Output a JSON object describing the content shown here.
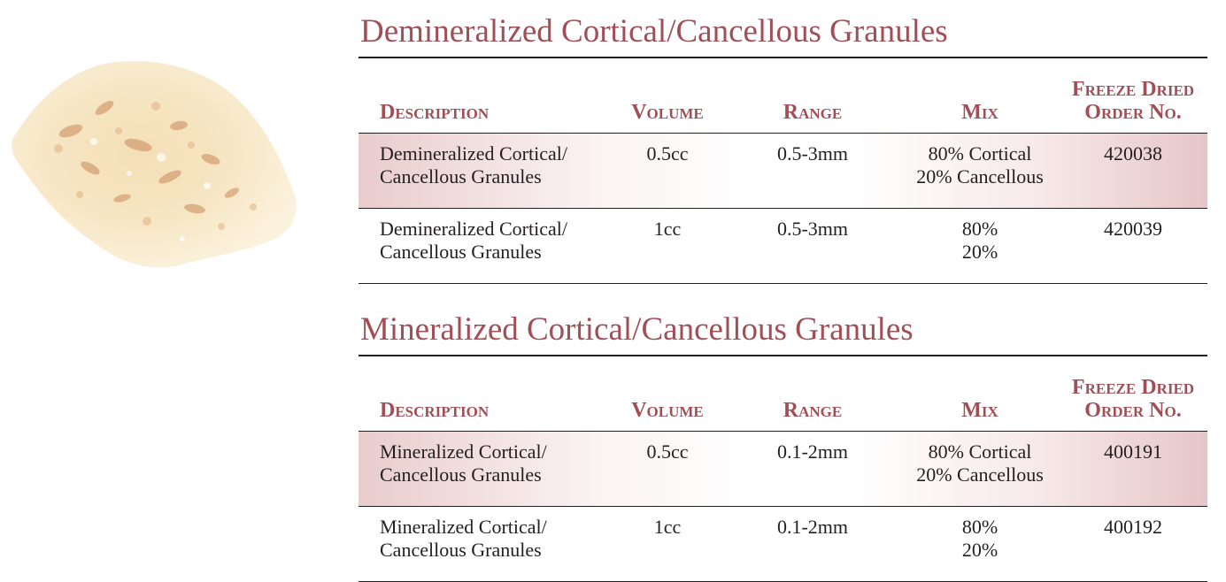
{
  "image": {
    "alt": "granules-photo"
  },
  "tables": [
    {
      "title": "Demineralized Cortical/Cancellous Granules",
      "headers": {
        "description": "Description",
        "volume": "Volume",
        "range": "Range",
        "mix": "Mix",
        "order_line1": "Freeze Dried",
        "order_line2": "Order No."
      },
      "rows": [
        {
          "desc1": "Demineralized Cortical/",
          "desc2": "Cancellous Granules",
          "volume": "0.5cc",
          "range": "0.5-3mm",
          "mix1": "80% Cortical",
          "mix2": "20% Cancellous",
          "order": "420038"
        },
        {
          "desc1": "Demineralized Cortical/",
          "desc2": "Cancellous Granules",
          "volume": "1cc",
          "range": "0.5-3mm",
          "mix1": "80%",
          "mix2": "20%",
          "order": "420039"
        }
      ]
    },
    {
      "title": "Mineralized Cortical/Cancellous Granules",
      "headers": {
        "description": "Description",
        "volume": "Volume",
        "range": "Range",
        "mix": "Mix",
        "order_line1": "Freeze Dried",
        "order_line2": "Order No."
      },
      "rows": [
        {
          "desc1": "Mineralized Cortical/",
          "desc2": "Cancellous Granules",
          "volume": "0.5cc",
          "range": "0.1-2mm",
          "mix1": "80% Cortical",
          "mix2": "20% Cancellous",
          "order": "400191"
        },
        {
          "desc1": "Mineralized Cortical/",
          "desc2": "Cancellous Granules",
          "volume": "1cc",
          "range": "0.1-2mm",
          "mix1": "80%",
          "mix2": "20%",
          "order": "400192"
        }
      ]
    }
  ]
}
